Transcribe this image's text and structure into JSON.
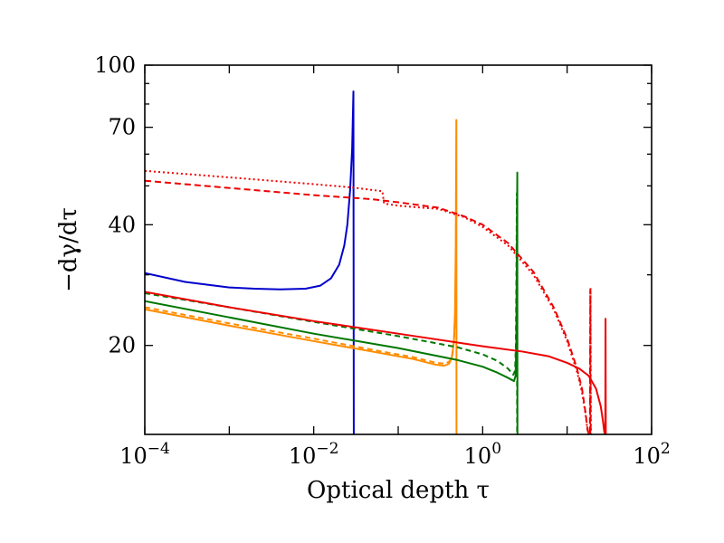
{
  "chart_data": {
    "type": "line",
    "title": "",
    "xlabel": "Optical depth τ",
    "ylabel": "−dγ/dτ",
    "xscale": "log",
    "yscale": "log",
    "xlim": [
      0.0001,
      100
    ],
    "ylim": [
      12,
      100
    ],
    "x_ticks": [
      {
        "value": 0.0001,
        "base": "10",
        "exp": "−4"
      },
      {
        "value": 0.01,
        "base": "10",
        "exp": "−2"
      },
      {
        "value": 1,
        "base": "10",
        "exp": "0"
      },
      {
        "value": 100,
        "base": "10",
        "exp": "2"
      }
    ],
    "y_ticks": [
      {
        "value": 20,
        "label": "20"
      },
      {
        "value": 40,
        "label": "40"
      },
      {
        "value": 70,
        "label": "70"
      },
      {
        "value": 100,
        "label": "100"
      }
    ],
    "legend": "none",
    "grid": false,
    "series": [
      {
        "name": "blue solid",
        "color": "#0000cc",
        "dash": "solid",
        "points": [
          [
            0.0001,
            30.3
          ],
          [
            0.0003,
            28.8
          ],
          [
            0.001,
            27.9
          ],
          [
            0.002,
            27.7
          ],
          [
            0.004,
            27.6
          ],
          [
            0.008,
            27.7
          ],
          [
            0.012,
            28.2
          ],
          [
            0.016,
            29.4
          ],
          [
            0.02,
            31.8
          ],
          [
            0.023,
            35.5
          ],
          [
            0.025,
            40
          ],
          [
            0.027,
            49
          ],
          [
            0.0285,
            62
          ],
          [
            0.0295,
            86
          ],
          [
            0.0298,
            12
          ]
        ]
      },
      {
        "name": "orange solid",
        "color": "#ff8c00",
        "dash": "solid",
        "points": [
          [
            0.0001,
            24.6
          ],
          [
            0.001,
            22.4
          ],
          [
            0.01,
            20.5
          ],
          [
            0.05,
            19.3
          ],
          [
            0.15,
            18.5
          ],
          [
            0.28,
            17.9
          ],
          [
            0.35,
            17.8
          ],
          [
            0.4,
            18.0
          ],
          [
            0.43,
            18.6
          ],
          [
            0.455,
            20.2
          ],
          [
            0.47,
            24
          ],
          [
            0.48,
            35
          ],
          [
            0.488,
            73
          ],
          [
            0.49,
            12
          ]
        ]
      },
      {
        "name": "orange dashed",
        "color": "#ff8c00",
        "dash": "6,4",
        "points": [
          [
            0.0001,
            24.9
          ],
          [
            0.001,
            22.7
          ],
          [
            0.01,
            20.8
          ],
          [
            0.05,
            19.5
          ],
          [
            0.15,
            18.7
          ],
          [
            0.28,
            18.1
          ],
          [
            0.36,
            18.0
          ],
          [
            0.41,
            18.3
          ],
          [
            0.44,
            19.0
          ],
          [
            0.46,
            21
          ],
          [
            0.475,
            25
          ]
        ]
      },
      {
        "name": "green solid",
        "color": "#007700",
        "dash": "solid",
        "points": [
          [
            0.0001,
            25.8
          ],
          [
            0.001,
            23.5
          ],
          [
            0.01,
            21.4
          ],
          [
            0.1,
            19.7
          ],
          [
            0.5,
            18.4
          ],
          [
            1.0,
            17.7
          ],
          [
            1.5,
            17.1
          ],
          [
            2.0,
            16.6
          ],
          [
            2.35,
            16.3
          ],
          [
            2.45,
            16.8
          ],
          [
            2.5,
            20
          ],
          [
            2.54,
            35
          ],
          [
            2.57,
            54
          ],
          [
            2.58,
            12
          ]
        ]
      },
      {
        "name": "green dashed",
        "color": "#007700",
        "dash": "6,4",
        "points": [
          [
            0.0001,
            27.0
          ],
          [
            0.001,
            24.9
          ],
          [
            0.01,
            22.9
          ],
          [
            0.1,
            21.1
          ],
          [
            0.5,
            19.8
          ],
          [
            1.0,
            19.0
          ],
          [
            1.5,
            18.3
          ],
          [
            2.0,
            17.5
          ],
          [
            2.3,
            16.9
          ],
          [
            2.42,
            17.3
          ],
          [
            2.47,
            20
          ],
          [
            2.51,
            30
          ],
          [
            2.54,
            48
          ],
          [
            2.56,
            12
          ]
        ]
      },
      {
        "name": "red solid",
        "color": "#ee0000",
        "dash": "solid",
        "points": [
          [
            0.0001,
            27.2
          ],
          [
            0.001,
            24.9
          ],
          [
            0.01,
            23.0
          ],
          [
            0.1,
            21.4
          ],
          [
            1.0,
            19.9
          ],
          [
            3.0,
            19.3
          ],
          [
            6.0,
            18.8
          ],
          [
            10.0,
            18.1
          ],
          [
            14.0,
            17.5
          ],
          [
            18.0,
            16.8
          ],
          [
            22.0,
            15.6
          ],
          [
            25.0,
            14.1
          ],
          [
            26.5,
            13.0
          ],
          [
            27.5,
            12.2
          ],
          [
            28.0,
            12
          ],
          [
            28.3,
            12
          ],
          [
            28.5,
            23.3
          ],
          [
            28.7,
            12
          ]
        ]
      },
      {
        "name": "red dashed",
        "color": "#ee0000",
        "dash": "7,4",
        "points": [
          [
            0.0001,
            51.5
          ],
          [
            0.001,
            49.4
          ],
          [
            0.01,
            47.4
          ],
          [
            0.05,
            46.3
          ],
          [
            0.1,
            45.5
          ],
          [
            0.3,
            44.1
          ],
          [
            0.6,
            42.0
          ],
          [
            1.0,
            40.0
          ],
          [
            2.0,
            36.0
          ],
          [
            4.0,
            30.5
          ],
          [
            7.0,
            24.8
          ],
          [
            10.0,
            20.8
          ],
          [
            13.0,
            17.6
          ],
          [
            15.0,
            15.6
          ],
          [
            16.5,
            13.6
          ],
          [
            17.5,
            12.3
          ],
          [
            18.0,
            12
          ],
          [
            18.6,
            12
          ],
          [
            18.8,
            27.5
          ],
          [
            19.0,
            12
          ]
        ]
      },
      {
        "name": "red dotted",
        "color": "#ee0000",
        "dash": "2,3",
        "points": [
          [
            0.0001,
            54.5
          ],
          [
            0.001,
            52.5
          ],
          [
            0.01,
            50.5
          ],
          [
            0.03,
            49.5
          ],
          [
            0.06,
            48.6
          ],
          [
            0.065,
            48.5
          ],
          [
            0.068,
            45.2
          ],
          [
            0.1,
            44.6
          ],
          [
            0.3,
            43.8
          ],
          [
            0.6,
            41.8
          ],
          [
            1.0,
            39.5
          ],
          [
            2.0,
            35.5
          ],
          [
            4.0,
            30.0
          ],
          [
            7.0,
            24.5
          ],
          [
            10.0,
            20.5
          ],
          [
            13.0,
            17.3
          ],
          [
            15.0,
            15.3
          ],
          [
            16.5,
            13.5
          ],
          [
            17.5,
            12.2
          ],
          [
            18.0,
            12
          ],
          [
            18.7,
            12
          ],
          [
            18.9,
            27.8
          ],
          [
            19.1,
            12
          ]
        ]
      }
    ]
  }
}
